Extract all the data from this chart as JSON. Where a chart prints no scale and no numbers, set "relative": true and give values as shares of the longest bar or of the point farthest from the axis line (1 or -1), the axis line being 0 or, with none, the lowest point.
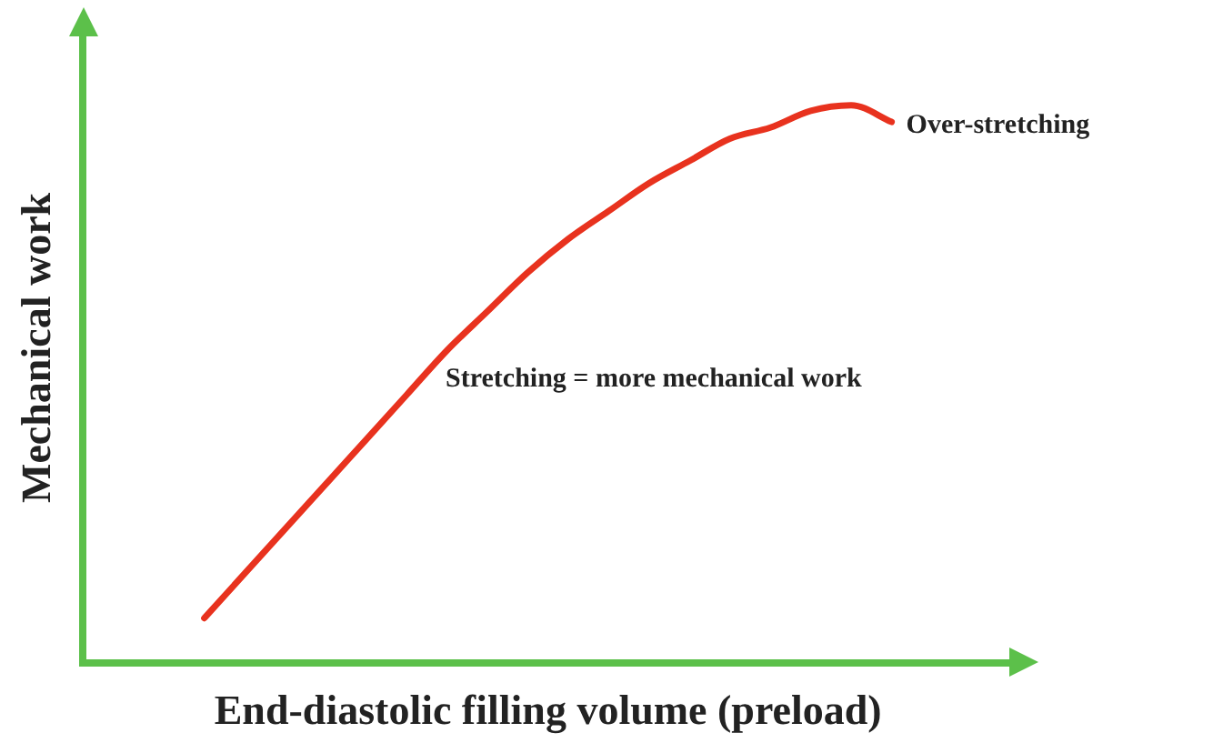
{
  "chart_data": {
    "type": "line",
    "relative": true,
    "xlabel": "End-diastolic filling volume (preload)",
    "ylabel": "Mechanical work",
    "categories": [
      null,
      null,
      null,
      null,
      null,
      null,
      null,
      null,
      null,
      null,
      null,
      null,
      null,
      null,
      null,
      null,
      null,
      null,
      null,
      null,
      null,
      null,
      null,
      null
    ],
    "series": [
      {
        "color": "#e8321e",
        "values": [
          null,
          null,
          null,
          0.08,
          0.16,
          0.24,
          0.32,
          0.4,
          0.48,
          0.56,
          0.63,
          0.7,
          0.76,
          0.81,
          0.86,
          0.9,
          0.94,
          0.96,
          0.99,
          1,
          0.97,
          null,
          null,
          null
        ]
      }
    ],
    "annotations": [
      "Over-stretching",
      "Stretching = more mechanical work"
    ],
    "grid": false,
    "legend": false,
    "marker": "none",
    "line_style": "solid"
  }
}
